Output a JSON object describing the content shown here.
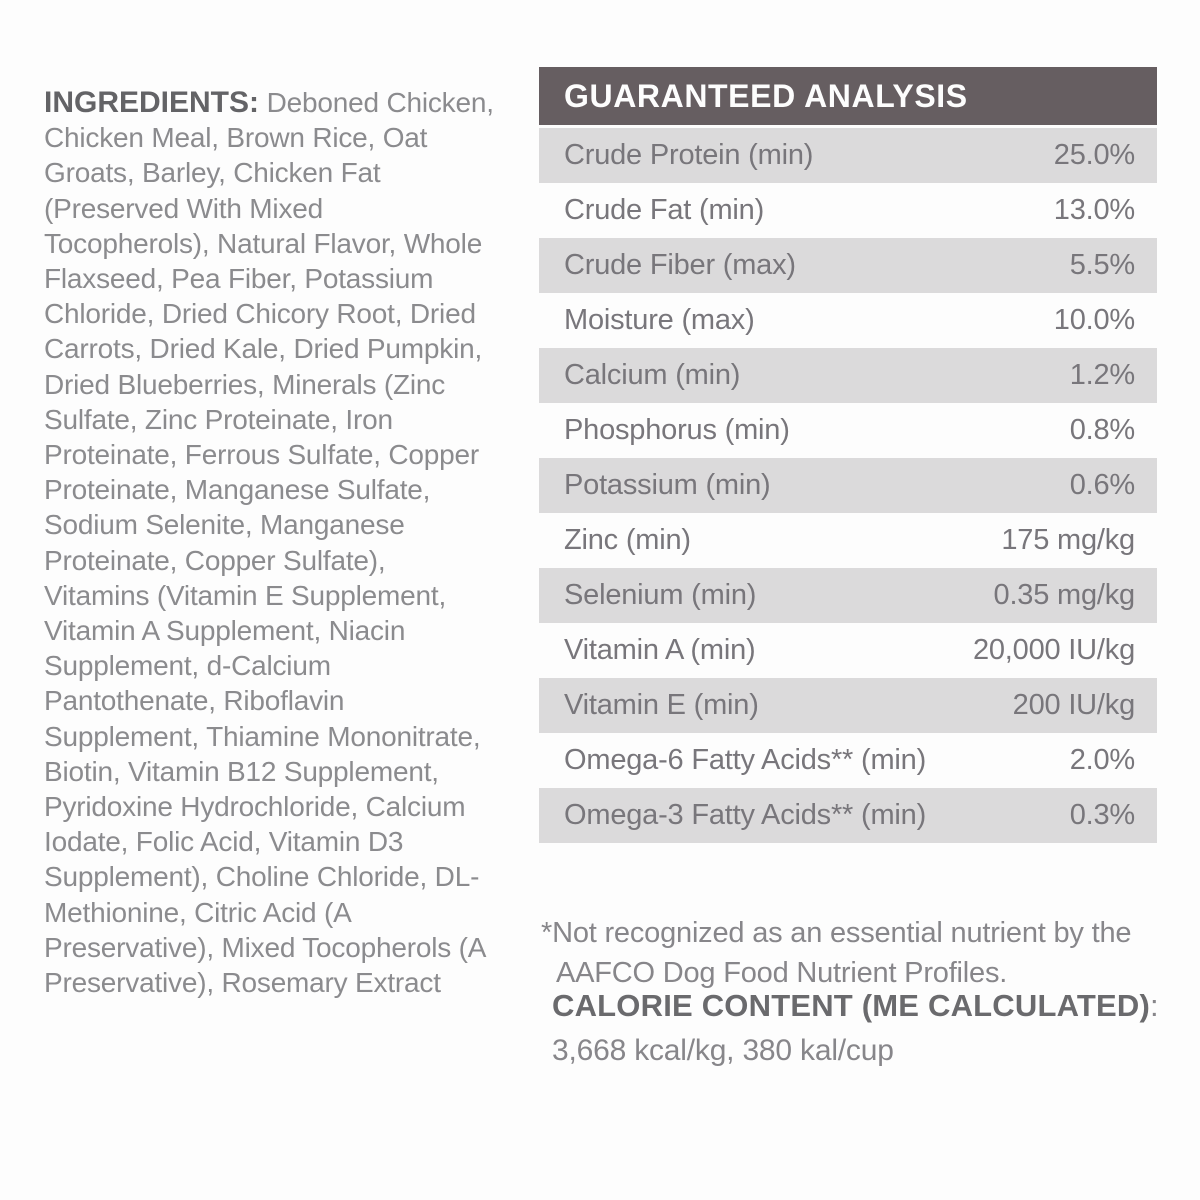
{
  "ingredients": {
    "label": "INGREDIENTS:",
    "text": "Deboned Chicken, Chicken Meal, Brown Rice, Oat Groats, Barley, Chicken Fat (Preserved With Mixed Tocopherols), Natural Flavor, Whole Flaxseed, Pea Fiber, Potassium Chloride, Dried Chicory Root, Dried Carrots, Dried Kale, Dried Pumpkin, Dried Blueberries, Minerals (Zinc Sulfate, Zinc Proteinate, Iron Proteinate, Ferrous Sulfate, Copper Proteinate, Manganese Sulfate, Sodium Selenite, Manganese Proteinate, Copper Sulfate), Vitamins (Vitamin E Supplement, Vitamin A Supplement, Niacin Supplement, d-Calcium Pantothenate, Riboflavin Supplement, Thiamine Mononitrate, Biotin, Vitamin B12 Supplement, Pyridoxine Hydrochloride, Calcium Iodate, Folic Acid, Vitamin D3 Supplement), Choline Chloride, DL-Methionine, Citric Acid (A Preservative), Mixed Tocopherols (A Preservative), Rosemary Extract"
  },
  "guaranteed_analysis": {
    "title": "GUARANTEED ANALYSIS",
    "rows": [
      {
        "label": "Crude Protein (min)",
        "value": "25.0%"
      },
      {
        "label": "Crude Fat (min)",
        "value": "13.0%"
      },
      {
        "label": "Crude Fiber (max)",
        "value": "5.5%"
      },
      {
        "label": "Moisture (max)",
        "value": "10.0%"
      },
      {
        "label": "Calcium (min)",
        "value": "1.2%"
      },
      {
        "label": "Phosphorus (min)",
        "value": "0.8%"
      },
      {
        "label": "Potassium (min)",
        "value": "0.6%"
      },
      {
        "label": "Zinc (min)",
        "value": "175 mg/kg"
      },
      {
        "label": "Selenium (min)",
        "value": "0.35 mg/kg"
      },
      {
        "label": "Vitamin A (min)",
        "value": "20,000 IU/kg"
      },
      {
        "label": "Vitamin E (min)",
        "value": "200 IU/kg"
      },
      {
        "label": "Omega-6 Fatty Acids** (min)",
        "value": "2.0%"
      },
      {
        "label": "Omega-3 Fatty Acids** (min)",
        "value": "0.3%"
      }
    ],
    "footnote_lines": [
      "*Not recognized as an essential nutrient by the",
      "AAFCO Dog Food Nutrient Profiles."
    ]
  },
  "calorie_content": {
    "heading": "CALORIE CONTENT (ME CALCULATED)",
    "colon": ":",
    "value": "3,668 kcal/kg, 380 kal/cup"
  },
  "colors": {
    "header_background": "#665e61",
    "header_text": "#fdfdfd",
    "row_shade": "#dbdadb",
    "table_text": "#78767b",
    "ingredients_heading": "#636366",
    "body_text": "#8b8b8e",
    "page_background": "#fdfdfd"
  }
}
